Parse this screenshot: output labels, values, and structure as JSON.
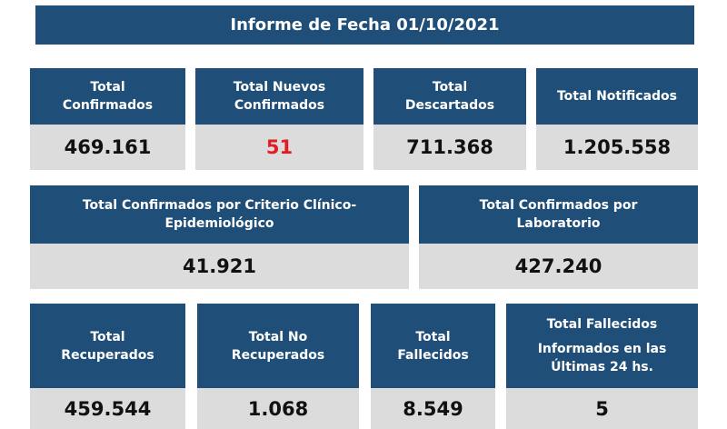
{
  "header": {
    "title": "Informe de Fecha 01/10/2021"
  },
  "colors": {
    "panel": "#1f4f78",
    "value_bg": "#dcdcdc",
    "highlight": "#e31b23"
  },
  "row1": [
    {
      "label": "Total\nConfirmados",
      "value": "469.161"
    },
    {
      "label": "Total Nuevos\nConfirmados",
      "value": "51"
    },
    {
      "label": "Total\nDescartados",
      "value": "711.368"
    },
    {
      "label": "Total Notificados",
      "value": "1.205.558"
    }
  ],
  "row2": [
    {
      "label": "Total Confirmados por Criterio Clínico-\nEpidemiológico",
      "value": "41.921"
    },
    {
      "label": "Total Confirmados por\nLaboratorio",
      "value": "427.240"
    }
  ],
  "row3": [
    {
      "label": "Total\nRecuperados",
      "value": "459.544"
    },
    {
      "label": "Total No\nRecuperados",
      "value": "1.068"
    },
    {
      "label": "Total\nFallecidos",
      "value": "8.549"
    },
    {
      "label_line1": "Total Fallecidos",
      "label_line2": "Informados en las\nÚltimas 24 hs.",
      "value": "5"
    }
  ]
}
